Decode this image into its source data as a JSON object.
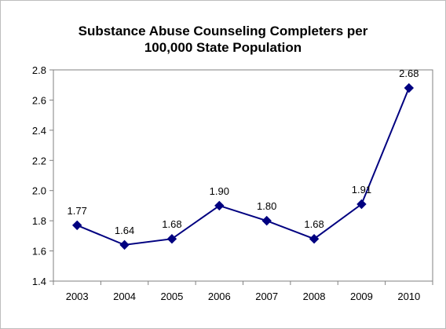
{
  "chart_data": {
    "type": "line",
    "title_lines": [
      "Substance Abuse Counseling Completers per",
      "100,000 State Population"
    ],
    "categories": [
      "2003",
      "2004",
      "2005",
      "2006",
      "2007",
      "2008",
      "2009",
      "2010"
    ],
    "series": [
      {
        "values": [
          1.77,
          1.64,
          1.68,
          1.9,
          1.8,
          1.68,
          1.91,
          2.68
        ],
        "data_labels": [
          "1.77",
          "1.64",
          "1.68",
          "1.90",
          "1.80",
          "1.68",
          "1.91",
          "2.68"
        ],
        "color": "#000080",
        "marker": "diamond"
      }
    ],
    "ylim": [
      1.4,
      2.8
    ],
    "yticks": [
      "1.4",
      "1.6",
      "1.8",
      "2.0",
      "2.2",
      "2.4",
      "2.6",
      "2.8"
    ],
    "xlabel": "",
    "ylabel": "",
    "grid": false,
    "legend": "none"
  }
}
